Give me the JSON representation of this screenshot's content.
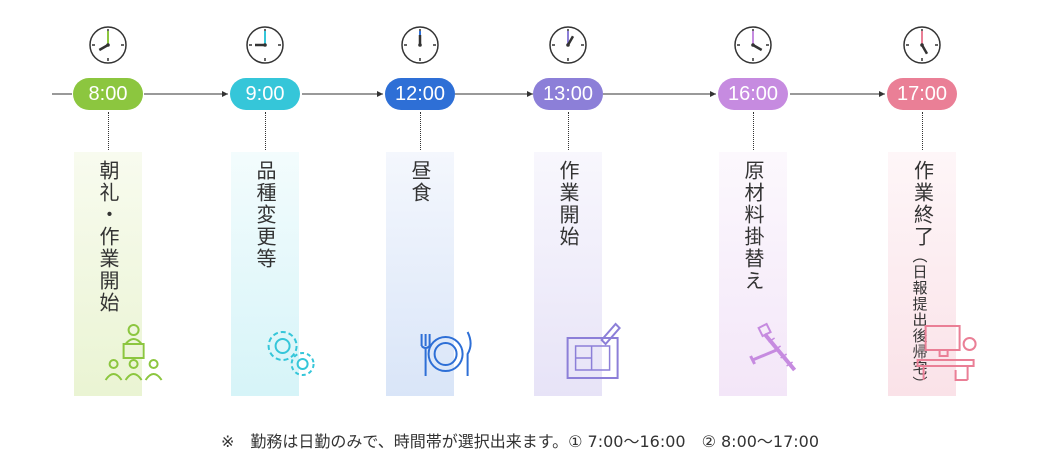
{
  "steps": [
    {
      "time": "8:00",
      "label": "朝礼・作業開始",
      "sub": "",
      "color": "#8CC63F",
      "hand": "#8CC63F",
      "bg": [
        "#EAF4D3",
        "#F8FBEF"
      ],
      "icon": "meeting-podium-icon"
    },
    {
      "time": "9:00",
      "label": "品種変更等",
      "sub": "",
      "color": "#35C6D9",
      "hand": "#35C6D9",
      "bg": [
        "#D6F4F8",
        "#F3FCFD"
      ],
      "icon": "gears-icon"
    },
    {
      "time": "12:00",
      "label": "昼食",
      "sub": "",
      "color": "#2E6FD6",
      "hand": "#2E6FD6",
      "bg": [
        "#D9E5F8",
        "#F4F7FD"
      ],
      "icon": "plate-utensils-icon"
    },
    {
      "time": "13:00",
      "label": "作業開始",
      "sub": "",
      "color": "#8C7FD8",
      "hand": "#8C7FD8",
      "bg": [
        "#E7E3F7",
        "#F8F7FD"
      ],
      "icon": "blueprint-icon"
    },
    {
      "time": "16:00",
      "label": "原材料掛替え",
      "sub": "",
      "color": "#C68BE0",
      "hand": "#C68BE0",
      "bg": [
        "#F3E6F8",
        "#FCF8FD"
      ],
      "icon": "screws-icon"
    },
    {
      "time": "17:00",
      "label": "作業終了",
      "sub": "（日報提出後帰宅）",
      "color": "#EA7F96",
      "hand": "#EA7F96",
      "bg": [
        "#FAE2E8",
        "#FEF6F8"
      ],
      "icon": "desk-computer-icon"
    }
  ],
  "note": "※　勤務は日勤のみで、時間帯が選択出来ます。① 7:00〜16:00　② 8:00〜17:00"
}
